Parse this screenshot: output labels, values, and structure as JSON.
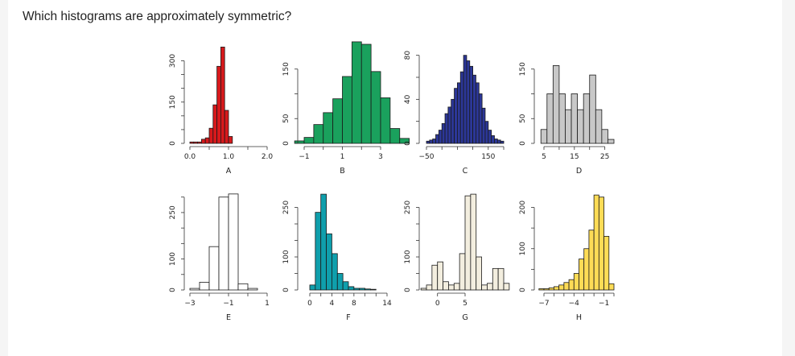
{
  "question": "Which histograms are approximately symmetric?",
  "chart_data": [
    {
      "type": "bar",
      "xlabel": "A",
      "xlim": [
        0.0,
        2.0
      ],
      "ylim": [
        0,
        360
      ],
      "xticks": [
        0.0,
        0.5,
        1.0,
        1.5,
        2.0
      ],
      "xticklabels": [
        "0.0",
        "",
        "1.0",
        "",
        "2.0"
      ],
      "yticks": [
        0,
        50,
        100,
        150,
        200,
        250,
        300
      ],
      "yticklabels": [
        "0",
        "",
        "",
        "150",
        "",
        "",
        "300"
      ],
      "bin_start": 0.0,
      "bin_width": 0.1,
      "values": [
        5,
        5,
        5,
        15,
        20,
        55,
        140,
        280,
        350,
        120,
        25
      ],
      "color": "#d7191c"
    },
    {
      "type": "bar",
      "xlabel": "B",
      "xlim": [
        -1,
        3
      ],
      "ylim": [
        0,
        200
      ],
      "xticks": [
        -1,
        0,
        1,
        2,
        3
      ],
      "xticklabels": [
        "−1",
        "",
        "1",
        "",
        "3"
      ],
      "yticks": [
        0,
        50,
        100,
        150
      ],
      "yticklabels": [
        "0",
        "50",
        "",
        "150"
      ],
      "bin_start": -1.5,
      "bin_width": 0.5,
      "values": [
        5,
        12,
        38,
        62,
        90,
        135,
        205,
        200,
        145,
        92,
        30,
        10
      ],
      "color": "#1aa15d"
    },
    {
      "type": "bar",
      "xlabel": "C",
      "xlim": [
        -50,
        200
      ],
      "ylim": [
        0,
        90
      ],
      "xticks": [
        -50,
        0,
        50,
        100,
        150,
        200
      ],
      "xticklabels": [
        "−50",
        "",
        "",
        "",
        "150",
        ""
      ],
      "yticks": [
        0,
        20,
        40,
        60,
        80
      ],
      "yticklabels": [
        "0",
        "",
        "40",
        "",
        "80"
      ],
      "bin_start": -50,
      "bin_width": 10,
      "values": [
        2,
        3,
        4,
        8,
        12,
        18,
        27,
        33,
        40,
        50,
        55,
        65,
        80,
        75,
        70,
        62,
        55,
        45,
        32,
        20,
        12,
        7,
        4,
        3,
        2
      ],
      "color": "#2c3798"
    },
    {
      "type": "bar",
      "xlabel": "D",
      "xlim": [
        5,
        28
      ],
      "ylim": [
        0,
        200
      ],
      "xticks": [
        5,
        10,
        15,
        20,
        25
      ],
      "xticklabels": [
        "5",
        "",
        "15",
        "",
        "25"
      ],
      "yticks": [
        0,
        50,
        100,
        150
      ],
      "yticklabels": [
        "0",
        "50",
        "",
        "150"
      ],
      "bin_start": 4,
      "bin_width": 2,
      "values": [
        28,
        100,
        157,
        100,
        68,
        100,
        68,
        100,
        138,
        68,
        28,
        8
      ],
      "color": "#c8c8c8"
    },
    {
      "type": "bar",
      "xlabel": "E",
      "xlim": [
        -3,
        1
      ],
      "ylim": [
        0,
        320
      ],
      "xticks": [
        -3,
        -2,
        -1,
        0,
        1
      ],
      "xticklabels": [
        "−3",
        "",
        "−1",
        "",
        "1"
      ],
      "yticks": [
        0,
        50,
        100,
        150,
        200,
        250,
        300
      ],
      "yticklabels": [
        "0",
        "",
        "100",
        "",
        "",
        "250",
        ""
      ],
      "bin_start": -3.0,
      "bin_width": 0.5,
      "values": [
        5,
        25,
        140,
        300,
        310,
        20,
        5
      ],
      "color": "#ffffff"
    },
    {
      "type": "bar",
      "xlabel": "F",
      "xlim": [
        0,
        14
      ],
      "ylim": [
        0,
        300
      ],
      "xticks": [
        0,
        2,
        4,
        6,
        8,
        10,
        12,
        14
      ],
      "xticklabels": [
        "0",
        "",
        "4",
        "",
        "8",
        "",
        "",
        "14"
      ],
      "yticks": [
        0,
        50,
        100,
        150,
        200,
        250
      ],
      "yticklabels": [
        "0",
        "",
        "100",
        "",
        "",
        "250"
      ],
      "bin_start": 0,
      "bin_width": 1,
      "values": [
        15,
        235,
        290,
        170,
        110,
        50,
        25,
        10,
        5,
        5,
        3,
        2
      ],
      "color": "#0f9fac"
    },
    {
      "type": "bar",
      "xlabel": "G",
      "xlim": [
        -2,
        12
      ],
      "ylim": [
        0,
        300
      ],
      "xticks": [
        0,
        5
      ],
      "xticklabels": [
        "0",
        "5"
      ],
      "yticks": [
        0,
        50,
        100,
        150,
        200,
        250
      ],
      "yticklabels": [
        "0",
        "",
        "100",
        "",
        "",
        "250"
      ],
      "bin_start": -3,
      "bin_width": 1,
      "values": [
        5,
        15,
        75,
        85,
        25,
        15,
        20,
        110,
        285,
        290,
        100,
        15,
        20,
        65,
        65,
        20
      ],
      "color": "#f3eedf"
    },
    {
      "type": "bar",
      "xlabel": "H",
      "xlim": [
        -7,
        0
      ],
      "ylim": [
        0,
        240
      ],
      "xticks": [
        -7,
        -6,
        -5,
        -4,
        -3,
        -2,
        -1,
        0
      ],
      "xticklabels": [
        "−7",
        "",
        "",
        "−4",
        "",
        "",
        "−1",
        ""
      ],
      "yticks": [
        0,
        50,
        100,
        150,
        200
      ],
      "yticklabels": [
        "0",
        "",
        "100",
        "",
        "200"
      ],
      "bin_start": -7.5,
      "bin_width": 0.5,
      "values": [
        3,
        3,
        5,
        8,
        12,
        18,
        25,
        40,
        75,
        100,
        145,
        230,
        225,
        130,
        15
      ],
      "color": "#fedc56"
    }
  ]
}
